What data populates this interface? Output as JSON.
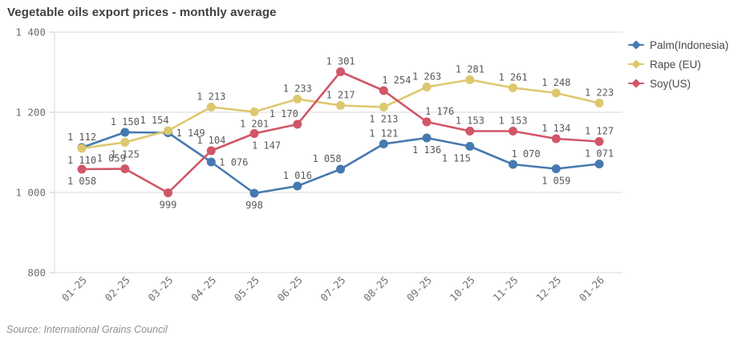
{
  "title": "Vegetable oils export prices - monthly average",
  "source": "Source: International Grains Council",
  "y_axis": {
    "ticks": [
      1400,
      1200,
      1000,
      800
    ],
    "labels": [
      "1 400",
      "1 200",
      "1 000",
      "800"
    ]
  },
  "chart_data": {
    "type": "line",
    "title": "Vegetable oils export prices - monthly average",
    "categories": [
      "01-25",
      "02-25",
      "03-25",
      "04-25",
      "05-25",
      "06-25",
      "07-25",
      "08-25",
      "09-25",
      "10-25",
      "11-25",
      "12-25",
      "01-26"
    ],
    "series": [
      {
        "name": "Palm(Indonesia)",
        "color": "#4679af",
        "values": [
          1112,
          1150,
          1149,
          1076,
          998,
          1016,
          1058,
          1121,
          1136,
          1115,
          1070,
          1059,
          1071
        ],
        "label_pos": [
          "above",
          "above",
          "right",
          "right",
          "below",
          "above",
          "above-left",
          "above",
          "below",
          "below-left",
          "above-right",
          "below",
          "above"
        ]
      },
      {
        "name": "Rape (EU)",
        "color": "#ddc86f",
        "values": [
          1110,
          1125,
          1154,
          1213,
          1201,
          1233,
          1217,
          1213,
          1263,
          1281,
          1261,
          1248,
          1223
        ],
        "label_pos": [
          "below",
          "below",
          "above-left",
          "above",
          "below",
          "above",
          "above",
          "below",
          "above",
          "above",
          "above",
          "above",
          "above"
        ]
      },
      {
        "name": "Soy(US)",
        "color": "#d05668",
        "values": [
          1058,
          1059,
          999,
          1104,
          1147,
          1170,
          1301,
          1254,
          1176,
          1153,
          1153,
          1134,
          1127
        ],
        "label_pos": [
          "below",
          "above-left",
          "below",
          "above",
          "below-right",
          "above-left",
          "above",
          "above-right",
          "above-right",
          "above",
          "above",
          "above",
          "above"
        ]
      }
    ],
    "ylim": [
      800,
      1400
    ],
    "grid": true,
    "legend_position": "right",
    "source": "Source: International Grains Council"
  }
}
